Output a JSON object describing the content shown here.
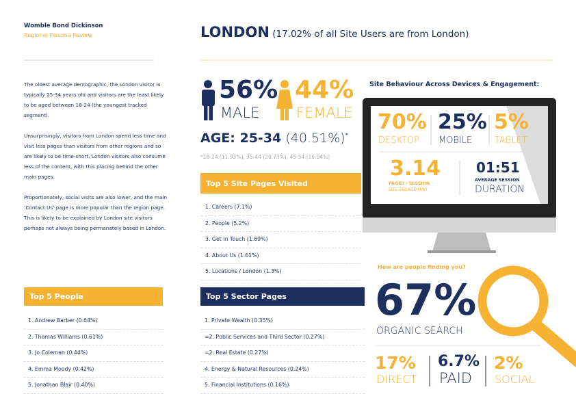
{
  "header": {
    "brand": "Womble Bond Dickinson",
    "subtitle": "Regional Persona Review",
    "title": "LONDON",
    "title_note": "(17.02% of all Site Users are from London)"
  },
  "intro": [
    "The oldest average demographic, the London visitor is typically 25-34 years old and visitors are the least likely to be aged between 18-24 (the youngest tracked segment).",
    "Unsurprisingly, visitors from London spend less time and visit less pages than visitors from other regions and so are likely to be time-short. London visitors also consume less of the content, with this placing behind the other main pages.",
    "Proportionately, social visits are also lower, and the main ‘Contact Us’ page is more popular than the region page.  This is likely to be explained by London site visitors perhaps not always being permanately based in London."
  ],
  "demographics": {
    "male_value": "56%",
    "male_label": "MALE",
    "female_value": "44%",
    "female_label": "FEMALE",
    "age_label": "AGE: 25-34",
    "age_value": "(40.51%)",
    "age_mark": "*",
    "age_others": "*18-24 (11.93%), 35-44 (20.73%), 45-54 (16.94%)"
  },
  "top_pages": {
    "title": "Top 5 Site Pages Visited",
    "items": [
      "1. Careers (7.1%)",
      "2. People (5.2%)",
      "3. Get in Touch (1.69%)",
      "4. About Us (1.61%)",
      "5. Locations / London (1.3%)"
    ]
  },
  "top_people": {
    "title": "Top 5 People",
    "items": [
      "1. Andrew Barber (0.64%)",
      "2. Thomas Williams (0.61%)",
      "3. Jo Coleman (0.44%)",
      "4. Emma Moody (0.42%)",
      "5. Jonathan Blair (0.40%)"
    ]
  },
  "top_sectors": {
    "title": "Top 5 Sector Pages",
    "items": [
      "1. Private Wealth (0.35%)",
      "=2. Public Services and Third Sector (0.27%)",
      "=2. Real Estate (0.27%)",
      "4. Energy & Natural Resources (0.24%)",
      "5. Financial Institutions (0.16%)"
    ]
  },
  "site_behaviour": {
    "title": "Site Behaviour Across Devices & Engagement:",
    "devices": [
      {
        "value": "70%",
        "label": "DESKTOP"
      },
      {
        "value": "25%",
        "label": "MOBILE"
      },
      {
        "value": "5%",
        "label": "TABLET"
      }
    ],
    "pages_per_session": {
      "value": "3.14",
      "label": "PAGES / SESSION",
      "sublabel": "SITE ENGAGEMENT"
    },
    "session_duration": {
      "value": "01:51",
      "label": "AVERAGE SESSION",
      "sublabel": "DURATION"
    }
  },
  "finding": {
    "title": "How are people finding you?",
    "main_value": "67%",
    "main_label": "ORGANIC SEARCH",
    "others": [
      {
        "value": "17%",
        "label": "DIRECT"
      },
      {
        "value": "6.7%",
        "label": "PAID"
      },
      {
        "value": "2%",
        "label": "SOCIAL"
      }
    ]
  }
}
